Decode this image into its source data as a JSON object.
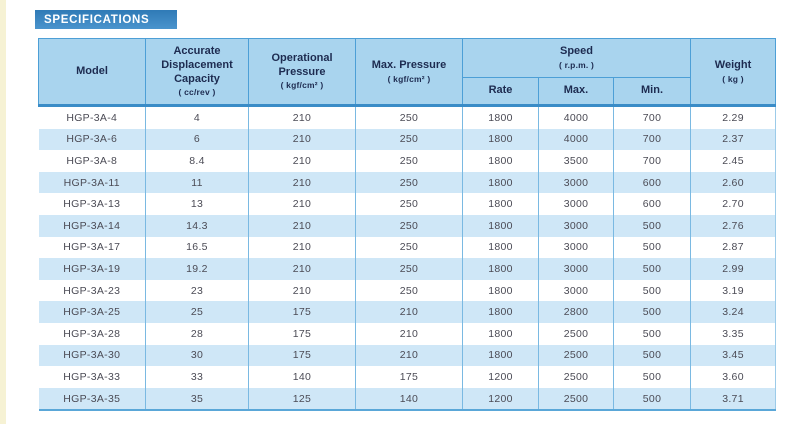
{
  "section": {
    "title": "SPECIFICATIONS"
  },
  "colors": {
    "banner_blue": "#3d86c2",
    "header_bg": "#a9d4ee",
    "header_text": "#1d2b50",
    "stripe_bg": "#cfe7f7",
    "border_blue": "#4d9fd6",
    "body_text": "#4b4b55",
    "edge_strip": "#f6f2d4"
  },
  "table": {
    "headers": {
      "model": {
        "label": "Model",
        "unit": ""
      },
      "displacement": {
        "label": "Accurate Displacement Capacity",
        "unit": "( cc/rev )"
      },
      "operational_pressure": {
        "label": "Operational Pressure",
        "unit": "( kgf/cm² )"
      },
      "max_pressure": {
        "label": "Max. Pressure",
        "unit": "( kgf/cm² )"
      },
      "speed": {
        "label": "Speed",
        "unit": "( r.p.m. )"
      },
      "speed_sub": {
        "rate": "Rate",
        "max": "Max.",
        "min": "Min."
      },
      "weight": {
        "label": "Weight",
        "unit": "( kg )"
      }
    },
    "column_keys": [
      "model",
      "displacement-capacity",
      "operational-pressure",
      "max-pressure",
      "speed-rate",
      "speed-max",
      "speed-min",
      "weight"
    ],
    "rows": [
      [
        "HGP-3A-4",
        "4",
        "210",
        "250",
        "1800",
        "4000",
        "700",
        "2.29"
      ],
      [
        "HGP-3A-6",
        "6",
        "210",
        "250",
        "1800",
        "4000",
        "700",
        "2.37"
      ],
      [
        "HGP-3A-8",
        "8.4",
        "210",
        "250",
        "1800",
        "3500",
        "700",
        "2.45"
      ],
      [
        "HGP-3A-11",
        "11",
        "210",
        "250",
        "1800",
        "3000",
        "600",
        "2.60"
      ],
      [
        "HGP-3A-13",
        "13",
        "210",
        "250",
        "1800",
        "3000",
        "600",
        "2.70"
      ],
      [
        "HGP-3A-14",
        "14.3",
        "210",
        "250",
        "1800",
        "3000",
        "500",
        "2.76"
      ],
      [
        "HGP-3A-17",
        "16.5",
        "210",
        "250",
        "1800",
        "3000",
        "500",
        "2.87"
      ],
      [
        "HGP-3A-19",
        "19.2",
        "210",
        "250",
        "1800",
        "3000",
        "500",
        "2.99"
      ],
      [
        "HGP-3A-23",
        "23",
        "210",
        "250",
        "1800",
        "3000",
        "500",
        "3.19"
      ],
      [
        "HGP-3A-25",
        "25",
        "175",
        "210",
        "1800",
        "2800",
        "500",
        "3.24"
      ],
      [
        "HGP-3A-28",
        "28",
        "175",
        "210",
        "1800",
        "2500",
        "500",
        "3.35"
      ],
      [
        "HGP-3A-30",
        "30",
        "175",
        "210",
        "1800",
        "2500",
        "500",
        "3.45"
      ],
      [
        "HGP-3A-33",
        "33",
        "140",
        "175",
        "1200",
        "2500",
        "500",
        "3.60"
      ],
      [
        "HGP-3A-35",
        "35",
        "125",
        "140",
        "1200",
        "2500",
        "500",
        "3.71"
      ]
    ]
  }
}
